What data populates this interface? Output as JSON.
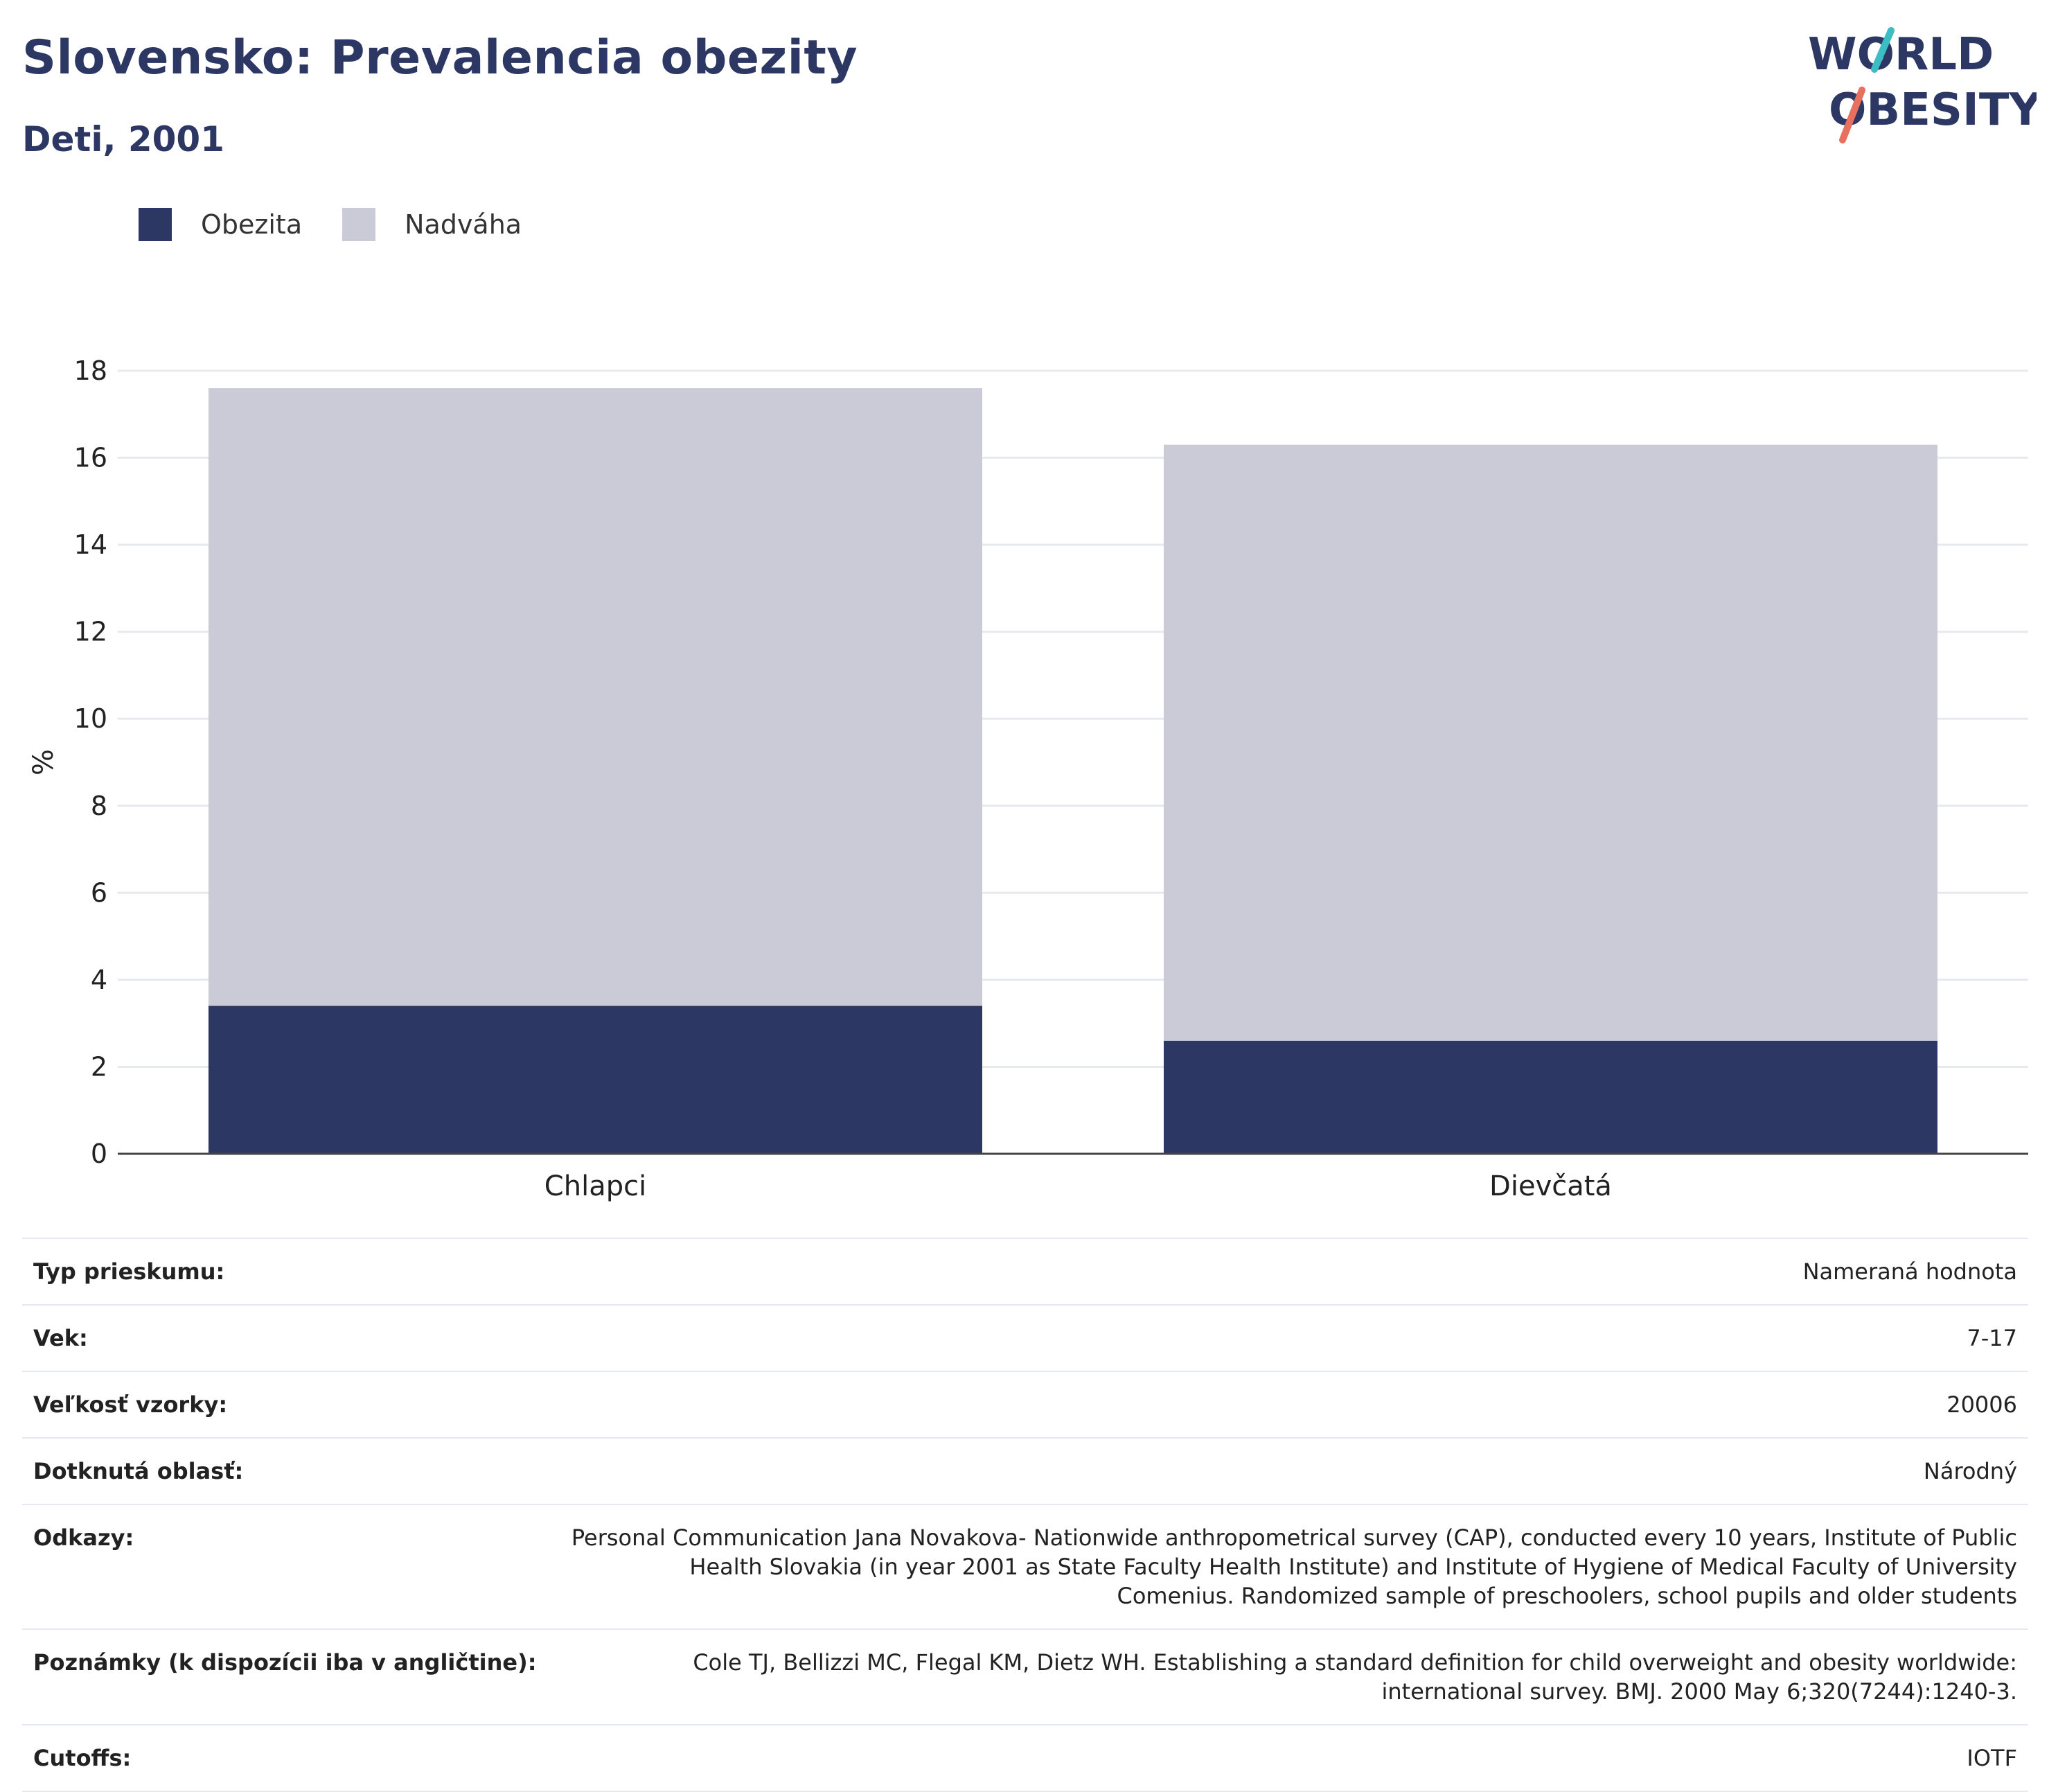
{
  "header": {
    "title": "Slovensko: Prevalencia obezity",
    "subtitle": "Deti, 2001"
  },
  "logo": {
    "line1": "WORLD",
    "line2": "OBESITY",
    "accent_colors": [
      "#3cbcc3",
      "#e8705f"
    ],
    "text_color": "#2c3764"
  },
  "chart_data": {
    "type": "bar",
    "stacked": true,
    "categories": [
      "Chlapci",
      "Dievčatá"
    ],
    "series": [
      {
        "name": "Obezita",
        "color": "#2c3764",
        "values": [
          3.4,
          2.6
        ]
      },
      {
        "name": "Nadváha",
        "color": "#cacbd6",
        "values": [
          14.2,
          13.7
        ]
      }
    ],
    "totals": [
      17.6,
      16.3
    ],
    "ylabel": "%",
    "xlabel": "",
    "ylim": [
      0,
      18
    ],
    "yticks": [
      0,
      2,
      4,
      6,
      8,
      10,
      12,
      14,
      16,
      18
    ],
    "grid": true,
    "legend_position": "top-left"
  },
  "details": [
    {
      "label": "Typ prieskumu:",
      "value": "Nameraná hodnota"
    },
    {
      "label": "Vek:",
      "value": "7-17"
    },
    {
      "label": "Veľkosť vzorky:",
      "value": "20006"
    },
    {
      "label": "Dotknutá oblasť:",
      "value": "Národný"
    },
    {
      "label": "Odkazy:",
      "value": "Personal Communication Jana Novakova- Nationwide anthropometrical survey (CAP), conducted every 10 years, Institute of Public Health Slovakia (in year 2001 as State Faculty Health Institute) and Institute of Hygiene of Medical Faculty of University Comenius. Randomized sample of preschoolers, school pupils and older students"
    },
    {
      "label": "Poznámky (k dispozícii iba v angličtine):",
      "value": "Cole TJ, Bellizzi MC, Flegal KM, Dietz WH. Establishing a standard definition for child overweight and obesity worldwide: international survey. BMJ. 2000 May 6;320(7244):1240-3."
    },
    {
      "label": "Cutoffs:",
      "value": "IOTF"
    }
  ]
}
